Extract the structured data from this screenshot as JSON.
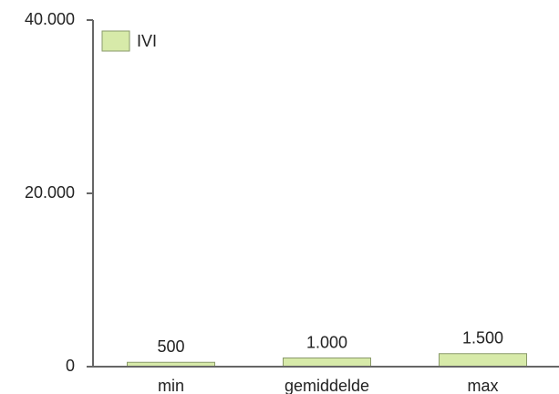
{
  "chart_data": {
    "type": "bar",
    "categories": [
      "min",
      "gemiddelde",
      "max"
    ],
    "series": [
      {
        "name": "IVI",
        "color": "#d7eaa9",
        "values": [
          500,
          1000,
          1500
        ],
        "value_labels": [
          "500",
          "1.000",
          "1.500"
        ]
      }
    ],
    "ylim": [
      0,
      40000
    ],
    "yticks": [
      0,
      {
        "value": 20000,
        "label": "20.000"
      },
      {
        "value": 40000,
        "label": "40.000"
      }
    ],
    "legend": "top-left"
  }
}
